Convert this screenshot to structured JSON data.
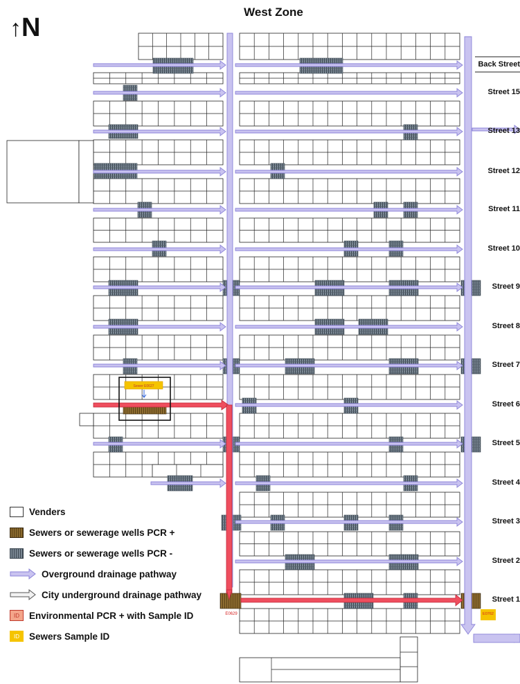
{
  "title": "West Zone",
  "north": {
    "arrow": "↑",
    "letter": "N"
  },
  "streets": [
    {
      "label": "Back Street",
      "row": 0
    },
    {
      "label": "Street 15",
      "row": 1
    },
    {
      "label": "Street 13",
      "row": 2
    },
    {
      "label": "Street 12",
      "row": 3
    },
    {
      "label": "Street 11",
      "row": 4
    },
    {
      "label": "Street 10",
      "row": 5
    },
    {
      "label": "Street 9",
      "row": 6
    },
    {
      "label": "Street 8",
      "row": 7
    },
    {
      "label": "Street 7",
      "row": 8
    },
    {
      "label": "Street 6",
      "row": 9
    },
    {
      "label": "Street 5",
      "row": 10
    },
    {
      "label": "Street 4",
      "row": 11
    },
    {
      "label": "Street 3",
      "row": 12
    },
    {
      "label": "Street 2",
      "row": 13
    },
    {
      "label": "Street 1",
      "row": 14
    }
  ],
  "sample_ids": {
    "west_sewer": "E0629",
    "east_sewer": "E0762",
    "street6_box": "Sewer E0627"
  },
  "legend": [
    {
      "key": "vendors",
      "swatch": "vendor",
      "label": "Venders"
    },
    {
      "key": "sewer_pos",
      "swatch": "pos",
      "label": "Sewers or sewerage wells PCR +"
    },
    {
      "key": "sewer_neg",
      "swatch": "neg",
      "label": "Sewers or sewerage wells PCR -"
    },
    {
      "key": "overground",
      "swatch": "purple-arrow",
      "label": "Overground drainage pathway"
    },
    {
      "key": "underground",
      "swatch": "grey-arrow",
      "label": "City underground drainage pathway"
    },
    {
      "key": "env_pcr",
      "swatch": "env-id",
      "label": "Environmental PCR + with Sample ID",
      "badge": "ID"
    },
    {
      "key": "sewer_id",
      "swatch": "sewer-id",
      "label": "Sewers Sample ID",
      "badge": "ID"
    }
  ],
  "colors": {
    "overground_fill": "#c9c3f0",
    "overground_stroke": "#8a82d8",
    "contaminated_path": "#ef4e5e",
    "pcr_positive": "#8a6a2e",
    "pcr_negative": "#6f7c88",
    "sample_badge": "#f5c400"
  }
}
